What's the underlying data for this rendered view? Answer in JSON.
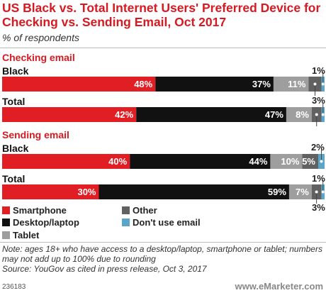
{
  "title": "US Black vs. Total Internet Users' Preferred Device for Checking vs. Sending Email, Oct 2017",
  "subtitle": "% of respondents",
  "colors": {
    "Smartphone": "#e21e25",
    "Desktop/laptop": "#111111",
    "Tablet": "#9e9e9e",
    "Other": "#616161",
    "Don't use email": "#5aa5c8"
  },
  "chart_data": {
    "type": "bar",
    "stacked": true,
    "orientation": "horizontal",
    "segments": [
      "Smartphone",
      "Desktop/laptop",
      "Tablet",
      "Other",
      "Don't use email"
    ],
    "groups": [
      {
        "label": "Checking email",
        "rows": [
          {
            "label": "Black",
            "values": [
              48,
              37,
              11,
              4,
              1
            ],
            "labels": [
              "48%",
              "37%",
              "11%",
              "4%",
              "1%"
            ]
          },
          {
            "label": "Total",
            "values": [
              42,
              47,
              8,
              3,
              1
            ],
            "labels": [
              "42%",
              "47%",
              "8%",
              "3%",
              ""
            ]
          }
        ]
      },
      {
        "label": "Sending email",
        "rows": [
          {
            "label": "Black",
            "values": [
              40,
              44,
              10,
              5,
              2
            ],
            "labels": [
              "40%",
              "44%",
              "10%",
              "5%",
              "2%"
            ]
          },
          {
            "label": "Total",
            "values": [
              30,
              59,
              7,
              3,
              1
            ],
            "labels": [
              "30%",
              "59%",
              "7%",
              "3%",
              "1%"
            ]
          }
        ]
      }
    ],
    "legend": [
      "Smartphone",
      "Desktop/laptop",
      "Tablet",
      "Other",
      "Don't use email"
    ]
  },
  "note": "Note: ages 18+ who have access to a desktop/laptop, smartphone or tablet; numbers may not add up to 100% due to rounding",
  "source": "Source: YouGov as cited in press release, Oct 3, 2017",
  "footer_id": "236183",
  "brand": "www.eMarketer.com"
}
